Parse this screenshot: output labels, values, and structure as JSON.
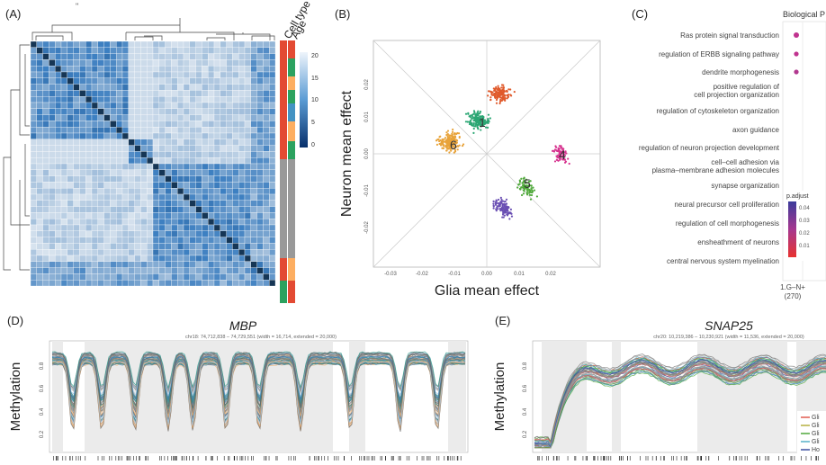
{
  "panelA": {
    "label": "(A)",
    "tick_mark": "\"",
    "annotation_labels": [
      "Cell type",
      "Age"
    ],
    "colorbar_ticks": [
      "20",
      "15",
      "10",
      "5",
      "0"
    ]
  },
  "panelB": {
    "label": "(B)",
    "xlabel": "Glia mean effect",
    "ylabel": "Neuron mean effect",
    "xticks": [
      "-0.03",
      "-0.02",
      "-0.01",
      "0.00",
      "0.01",
      "0.02"
    ],
    "yticks": [
      "0.02",
      "0.01",
      "0.00",
      "-0.01",
      "-0.02"
    ],
    "cluster_labels": [
      "1",
      "6",
      "4",
      "5"
    ]
  },
  "panelC": {
    "label": "(C)",
    "header": "Biological P",
    "terms": [
      "Ras protein signal transduction",
      "regulation of ERBB signaling pathway",
      "dendrite morphogenesis",
      "positive regulation of",
      "cell projection organization",
      "regulation of cytoskeleton organization",
      "axon guidance",
      "regulation of neuron projection development",
      "cell–cell adhesion via",
      "plasma–membrane adhesion molecules",
      "synapse organization",
      "neural precursor cell proliferation",
      "regulation of cell morphogenesis",
      "ensheathment of neurons",
      "central nervous system myelination"
    ],
    "legend_title": "p.adjust",
    "legend_ticks": [
      "0.04",
      "0.03",
      "0.02",
      "0.01"
    ],
    "x_label_1": "1.G–N+",
    "x_label_2": "(270)"
  },
  "panelD": {
    "label": "(D)",
    "gene": "MBP",
    "coords": "chr18: 74,712,838 – 74,729,551 (width = 16,714, extended = 20,000)",
    "ylabel": "Methylation",
    "yticks": [
      "0.8",
      "0.6",
      "0.4",
      "0.2"
    ]
  },
  "panelE": {
    "label": "(E)",
    "gene": "SNAP25",
    "coords": "chr20: 10,219,386 – 10,230,921 (width = 11,536, extended = 20,000)",
    "ylabel": "Methylation",
    "yticks": [
      "0.8",
      "0.6",
      "0.4",
      "0.2"
    ],
    "legend": [
      "Gli",
      "Gli",
      "Gli",
      "Gli",
      "Ho"
    ]
  },
  "colors": {
    "heat_dark": "#0b2c6b",
    "heat_mid": "#3c7fc0",
    "heat_light": "#dbe9f6",
    "cluster1": "#2aa673",
    "cluster_red": "#e05a2b",
    "cluster6": "#e8a33a",
    "cluster4": "#d6338f",
    "cluster5": "#4fa83a",
    "cluster_purple": "#6a4fb3"
  }
}
